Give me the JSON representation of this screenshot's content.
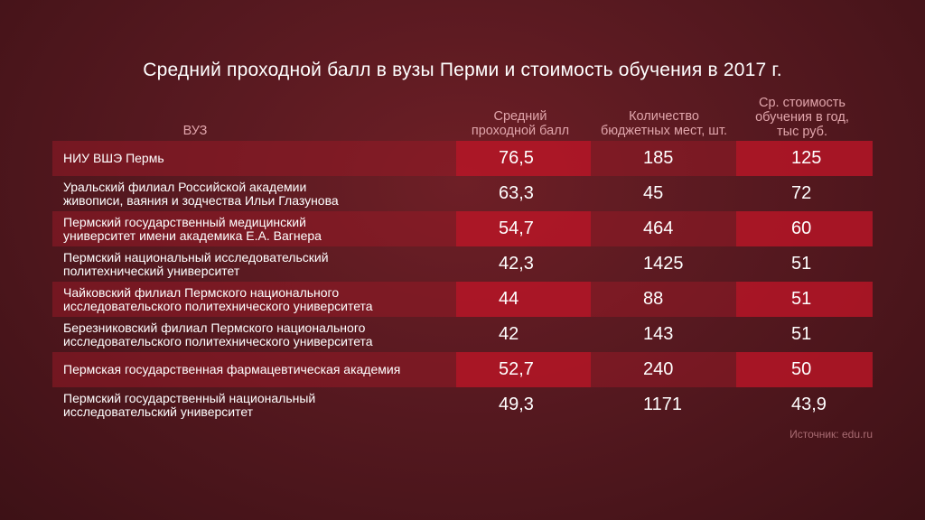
{
  "title": "Средний проходной балл в вузы Перми и стоимость обучения в 2017 г.",
  "headers": {
    "vuz": "ВУЗ",
    "score": [
      "Средний",
      "проходной балл"
    ],
    "places": [
      "Количество",
      "бюджетных мест, шт."
    ],
    "cost": [
      "Ср. стоимость",
      "обучения в год,",
      "тыс руб."
    ]
  },
  "source": "Источник: edu.ru",
  "colors": {
    "row_shade": "#961926",
    "highlight": "#cd1428",
    "header_text": "#e0a5ab"
  },
  "chart_data": {
    "type": "table",
    "title": "Средний проходной балл в вузы Перми и стоимость обучения в 2017 г.",
    "columns": [
      "ВУЗ",
      "Средний проходной балл",
      "Количество бюджетных мест, шт.",
      "Ср. стоимость обучения в год, тыс руб."
    ],
    "rows": [
      {
        "name": [
          "НИУ ВШЭ Пермь"
        ],
        "score": "76,5",
        "places": "185",
        "cost": "125"
      },
      {
        "name": [
          "Уральский филиал Российской академии",
          "живописи, ваяния и зодчества Ильи Глазунова"
        ],
        "score": "63,3",
        "places": "45",
        "cost": "72"
      },
      {
        "name": [
          "Пермский государственный медицинский",
          "университет имени академика Е.А. Вагнера"
        ],
        "score": "54,7",
        "places": "464",
        "cost": "60"
      },
      {
        "name": [
          "Пермский национальный исследовательский",
          "политехнический университет"
        ],
        "score": "42,3",
        "places": "1425",
        "cost": "51"
      },
      {
        "name": [
          "Чайковский филиал Пермского национального",
          "исследовательского политехнического университета"
        ],
        "score": "44",
        "places": "88",
        "cost": "51"
      },
      {
        "name": [
          "Березниковский филиал Пермского национального",
          "исследовательского политехнического университета"
        ],
        "score": "42",
        "places": "143",
        "cost": "51"
      },
      {
        "name": [
          "Пермская государственная фармацевтическая академия"
        ],
        "score": "52,7",
        "places": "240",
        "cost": "50"
      },
      {
        "name": [
          "Пермский государственный национальный",
          "исследовательский университет"
        ],
        "score": "49,3",
        "places": "1171",
        "cost": "43,9"
      }
    ]
  }
}
